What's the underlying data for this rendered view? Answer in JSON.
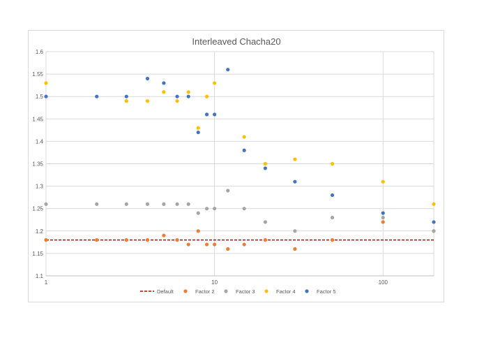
{
  "chart_data": {
    "type": "scatter",
    "title": "Interleaved Chacha20",
    "xscale": "log",
    "xlim": [
      1,
      200
    ],
    "ylim": [
      1.1,
      1.6
    ],
    "x_tick_labels": [
      "1",
      "10",
      "100"
    ],
    "y_tick_labels": [
      "1.1",
      "1.15",
      "1.2",
      "1.25",
      "1.3",
      "1.35",
      "1.4",
      "1.45",
      "1.5",
      "1.55",
      "1.6"
    ],
    "default_line": {
      "name": "Default",
      "y": 1.18,
      "color": "#c00000"
    },
    "series": [
      {
        "name": "Factor 2",
        "color": "#ed7d31",
        "x": [
          1,
          2,
          3,
          4,
          5,
          6,
          7,
          8,
          9,
          10,
          12,
          15,
          20,
          30,
          50,
          100,
          200
        ],
        "y": [
          1.18,
          1.18,
          1.18,
          1.18,
          1.19,
          1.18,
          1.17,
          1.2,
          1.17,
          1.17,
          1.16,
          1.17,
          1.18,
          1.16,
          1.18,
          1.22,
          1.2
        ]
      },
      {
        "name": "Factor 3",
        "color": "#a5a5a5",
        "x": [
          1,
          2,
          3,
          4,
          5,
          6,
          7,
          8,
          9,
          10,
          12,
          15,
          20,
          30,
          50,
          100,
          200
        ],
        "y": [
          1.26,
          1.26,
          1.26,
          1.26,
          1.26,
          1.26,
          1.26,
          1.24,
          1.25,
          1.25,
          1.29,
          1.25,
          1.22,
          1.2,
          1.23,
          1.23,
          1.2
        ]
      },
      {
        "name": "Factor 4",
        "color": "#ffc000",
        "x": [
          1,
          3,
          4,
          5,
          6,
          7,
          8,
          9,
          10,
          15,
          20,
          30,
          50,
          100,
          200
        ],
        "y": [
          1.53,
          1.49,
          1.49,
          1.51,
          1.49,
          1.51,
          1.43,
          1.5,
          1.53,
          1.41,
          1.35,
          1.36,
          1.35,
          1.31,
          1.26
        ]
      },
      {
        "name": "Factor 5",
        "color": "#4472c4",
        "x": [
          1,
          2,
          3,
          4,
          5,
          6,
          7,
          8,
          9,
          10,
          12,
          15,
          20,
          30,
          50,
          100,
          200
        ],
        "y": [
          1.5,
          1.5,
          1.5,
          1.54,
          1.53,
          1.5,
          1.5,
          1.42,
          1.46,
          1.46,
          1.56,
          1.38,
          1.34,
          1.31,
          1.28,
          1.24,
          1.22
        ]
      }
    ],
    "legend": [
      "Default",
      "Factor 2",
      "Factor 3",
      "Factor 4",
      "Factor 5"
    ],
    "legend_position": "bottom",
    "grid": true
  }
}
